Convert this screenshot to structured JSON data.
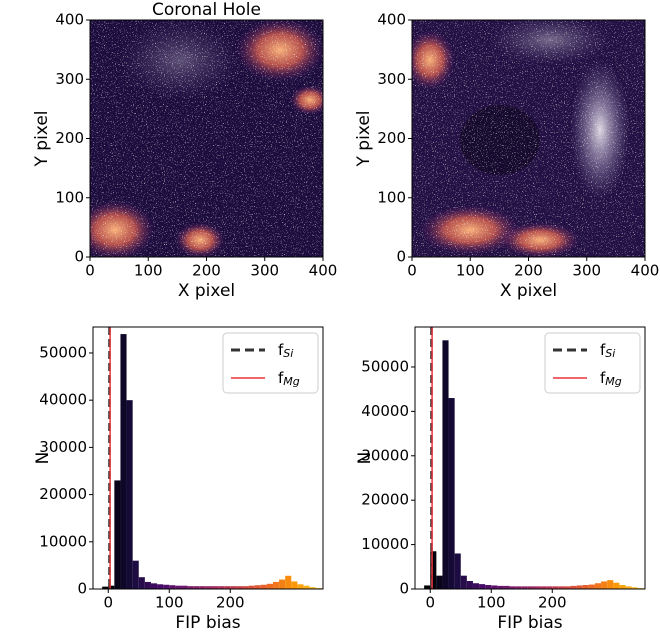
{
  "chart_data": [
    {
      "type": "image",
      "title": "Coronal Hole",
      "xlabel": "X pixel",
      "ylabel": "Y pixel",
      "xlim": [
        0,
        400
      ],
      "ylim": [
        0,
        400
      ],
      "xticks": [
        0,
        100,
        200,
        300,
        400
      ],
      "yticks": [
        0,
        100,
        200,
        300,
        400
      ]
    },
    {
      "type": "image",
      "xlabel": "X pixel",
      "ylabel": "Y pixel",
      "xlim": [
        0,
        400
      ],
      "ylim": [
        0,
        400
      ],
      "xticks": [
        0,
        100,
        200,
        300,
        400
      ],
      "yticks": [
        0,
        100,
        200,
        300,
        400
      ]
    },
    {
      "type": "histogram",
      "xlabel": "FIP bias",
      "ylabel": "N",
      "xlim": [
        -25,
        352
      ],
      "ylim": [
        0,
        55500
      ],
      "xticks": [
        0,
        100,
        200
      ],
      "yticks": [
        0,
        10000,
        20000,
        30000,
        40000,
        50000
      ],
      "bins": [
        -10,
        0,
        10,
        20,
        30,
        40,
        50,
        60,
        70,
        80,
        90,
        100,
        110,
        120,
        130,
        140,
        150,
        160,
        170,
        180,
        190,
        200,
        210,
        220,
        230,
        240,
        250,
        260,
        270,
        280,
        290,
        300,
        310,
        320,
        330,
        340,
        350
      ],
      "values": [
        500,
        700,
        23000,
        54000,
        40000,
        6000,
        2500,
        1500,
        1200,
        1000,
        900,
        800,
        700,
        700,
        600,
        600,
        600,
        600,
        600,
        600,
        600,
        600,
        600,
        600,
        700,
        800,
        900,
        1100,
        1500,
        2000,
        2800,
        1600,
        1000,
        700,
        400,
        200
      ],
      "colormap": [
        "#000004",
        "#1b0c41",
        "#4a0c6b",
        "#781c6d",
        "#a52c60",
        "#cf4446",
        "#ed6925",
        "#fb9b06",
        "#f7d13d"
      ],
      "vlines": [
        {
          "value": 2,
          "color": "#333333",
          "style": "dashed"
        },
        {
          "value": 3,
          "color": "#e8343a",
          "style": "solid"
        }
      ],
      "legend": [
        {
          "text": "f",
          "sub": "Si"
        },
        {
          "text": "f",
          "sub": "Mg"
        }
      ],
      "legend_loc": "upper right"
    },
    {
      "type": "histogram",
      "xlabel": "FIP bias",
      "ylabel": "N",
      "xlim": [
        -25,
        352
      ],
      "ylim": [
        0,
        59000
      ],
      "xticks": [
        0,
        100,
        200
      ],
      "yticks": [
        0,
        10000,
        20000,
        30000,
        40000,
        50000
      ],
      "bins": [
        -10,
        0,
        10,
        20,
        30,
        40,
        50,
        60,
        70,
        80,
        90,
        100,
        110,
        120,
        130,
        140,
        150,
        160,
        170,
        180,
        190,
        200,
        210,
        220,
        230,
        240,
        250,
        260,
        270,
        280,
        290,
        300,
        310,
        320,
        330,
        340,
        350
      ],
      "values": [
        800,
        8500,
        3000,
        56000,
        43000,
        8000,
        3000,
        1800,
        1300,
        1100,
        900,
        800,
        700,
        700,
        600,
        600,
        600,
        600,
        600,
        600,
        600,
        600,
        600,
        600,
        700,
        800,
        900,
        1000,
        1300,
        1700,
        2000,
        1400,
        900,
        600,
        400,
        200
      ],
      "colormap": [
        "#000004",
        "#1b0c41",
        "#4a0c6b",
        "#781c6d",
        "#a52c60",
        "#cf4446",
        "#ed6925",
        "#fb9b06",
        "#f7d13d"
      ],
      "vlines": [
        {
          "value": 2,
          "color": "#333333",
          "style": "dashed"
        },
        {
          "value": 3,
          "color": "#e8343a",
          "style": "solid"
        }
      ],
      "legend": [
        {
          "text": "f",
          "sub": "Si"
        },
        {
          "text": "f",
          "sub": "Mg"
        }
      ],
      "legend_loc": "upper right"
    }
  ]
}
